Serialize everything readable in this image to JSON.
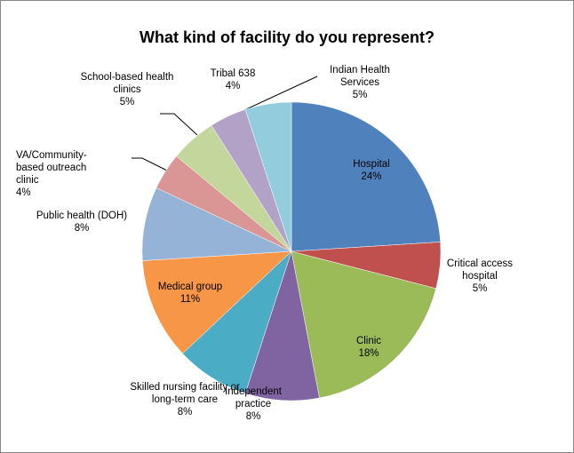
{
  "chart_data": {
    "type": "pie",
    "title": "What kind of facility do you represent?",
    "categories": [
      "Hospital",
      "Critical access hospital",
      "Clinic",
      "Independent practice",
      "Skilled nursing facility or long-term care",
      "Medical group",
      "Public health (DOH)",
      "VA/Community-based outreach clinic",
      "School-based health clinics",
      "Tribal 638",
      "Indian Health Services"
    ],
    "values": [
      24,
      5,
      18,
      8,
      8,
      11,
      8,
      4,
      5,
      4,
      5
    ],
    "value_labels": [
      "24%",
      "5%",
      "18%",
      "8%",
      "8%",
      "11%",
      "8%",
      "4%",
      "5%",
      "4%",
      "5%"
    ],
    "colors": [
      "#4f81bd",
      "#c0504d",
      "#9bbb59",
      "#8064a2",
      "#4bacc6",
      "#f79646",
      "#95b3d7",
      "#d99694",
      "#c3d69b",
      "#b3a2c7",
      "#93cddd"
    ]
  }
}
